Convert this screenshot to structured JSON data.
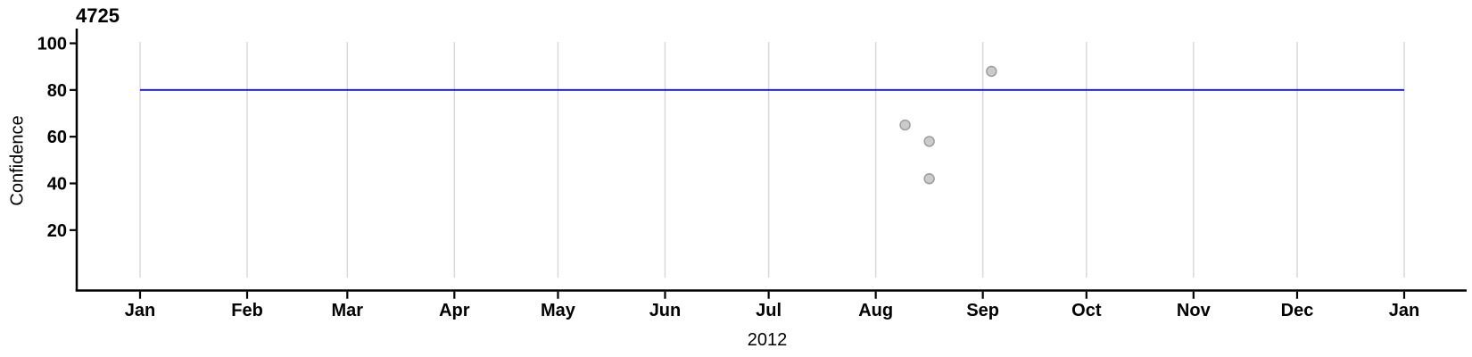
{
  "chart_data": {
    "type": "scatter",
    "title": "4725",
    "xlabel": "2012",
    "ylabel": "Confidence",
    "x_axis": {
      "unit": "month",
      "year_shown": "2012",
      "tick_labels": [
        "Jan",
        "Feb",
        "Mar",
        "Apr",
        "May",
        "Jun",
        "Jul",
        "Aug",
        "Sep",
        "Oct",
        "Nov",
        "Dec",
        "Jan"
      ],
      "tick_days": [
        0,
        31,
        60,
        91,
        121,
        152,
        182,
        213,
        244,
        274,
        305,
        335,
        366
      ],
      "domain_days": [
        0,
        366
      ]
    },
    "y_axis": {
      "ticks": [
        20,
        40,
        60,
        80,
        100
      ],
      "ylim": [
        -6,
        106
      ]
    },
    "grid": "vertical month gridlines only",
    "legend": "none",
    "reference_line": {
      "value": 80,
      "color": "#0f0fd8",
      "span_days": [
        0,
        366
      ]
    },
    "points": [
      {
        "date": "2012-08-09",
        "day_of_year": 221.5,
        "confidence": 65
      },
      {
        "date": "2012-08-16",
        "day_of_year": 228.5,
        "confidence": 58
      },
      {
        "date": "2012-08-16",
        "day_of_year": 228.5,
        "confidence": 42
      },
      {
        "date": "2012-09-03",
        "day_of_year": 246.5,
        "confidence": 88
      }
    ],
    "styles": {
      "point_fill": "#cbcbcb",
      "point_stroke": "#9a9a9a",
      "grid_color": "#d9d9d9",
      "axis_color": "#000000",
      "text_color": "#000000",
      "background": "#ffffff"
    }
  }
}
